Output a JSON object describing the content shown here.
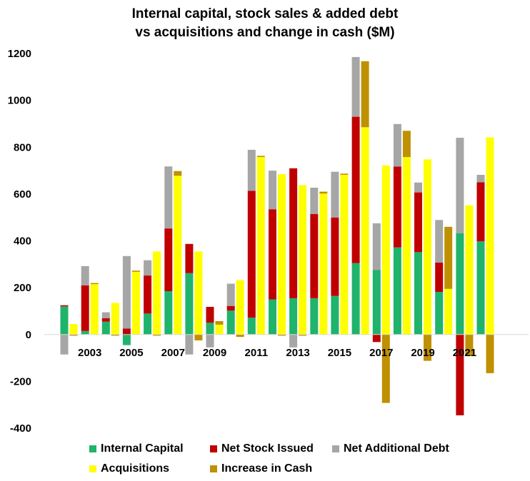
{
  "chart_data": {
    "type": "bar",
    "title": "Internal capital, stock sales & added debt",
    "subtitle": "vs acquisitions and change in cash ($M)",
    "xlabel": "",
    "ylabel": "",
    "ylim": [
      -400,
      1200
    ],
    "yticks": [
      1200,
      1000,
      800,
      600,
      400,
      200,
      0,
      -200,
      -400
    ],
    "years": [
      2002,
      2003,
      2004,
      2005,
      2006,
      2007,
      2008,
      2009,
      2010,
      2011,
      2012,
      2013,
      2014,
      2015,
      2016,
      2017,
      2018,
      2019,
      2020,
      2021,
      2022
    ],
    "xtick_labels": [
      "2003",
      "2005",
      "2007",
      "2009",
      "2011",
      "2013",
      "2015",
      "2017",
      "2019",
      "2021"
    ],
    "xtick_years": [
      2003,
      2005,
      2007,
      2009,
      2011,
      2013,
      2015,
      2017,
      2019,
      2021
    ],
    "grid": false,
    "legend_position": "bottom",
    "colors": {
      "internal_capital": "#1fb36b",
      "net_stock_issued": "#c00000",
      "net_additional_debt": "#a6a6a6",
      "acquisitions": "#ffff00",
      "increase_in_cash": "#bf9000"
    },
    "series": [
      {
        "name": "Internal Capital",
        "key": "internal_capital",
        "stack": "funding",
        "values": [
          120,
          15,
          55,
          -45,
          90,
          185,
          262,
          50,
          102,
          72,
          150,
          155,
          155,
          165,
          305,
          275,
          372,
          352,
          182,
          432,
          398
        ]
      },
      {
        "name": "Net Stock Issued",
        "key": "net_stock_issued",
        "stack": "funding",
        "values": [
          5,
          195,
          15,
          25,
          162,
          268,
          125,
          68,
          20,
          542,
          385,
          555,
          360,
          335,
          625,
          -32,
          345,
          255,
          125,
          -345,
          252
        ]
      },
      {
        "name": "Net Additional Debt",
        "key": "net_additional_debt",
        "stack": "funding",
        "values": [
          -85,
          82,
          25,
          310,
          65,
          265,
          -85,
          -55,
          95,
          175,
          165,
          -55,
          112,
          195,
          255,
          200,
          182,
          42,
          182,
          408,
          32
        ]
      },
      {
        "name": "Acquisitions",
        "key": "acquisitions",
        "stack": "uses",
        "values": [
          45,
          215,
          135,
          268,
          355,
          678,
          355,
          42,
          232,
          758,
          685,
          638,
          602,
          682,
          885,
          722,
          758,
          748,
          195,
          552,
          842
        ]
      },
      {
        "name": "Increase in Cash",
        "key": "increase_in_cash",
        "stack": "uses",
        "values": [
          -5,
          5,
          -5,
          5,
          -5,
          20,
          -25,
          15,
          -10,
          5,
          -5,
          -5,
          8,
          5,
          282,
          -292,
          112,
          -112,
          265,
          -92,
          -165
        ]
      }
    ]
  },
  "legend": {
    "internal_capital": "Internal Capital",
    "net_stock_issued": "Net Stock Issued",
    "net_additional_debt": "Net Additional Debt",
    "acquisitions": "Acquisitions",
    "increase_in_cash": "Increase in Cash"
  }
}
